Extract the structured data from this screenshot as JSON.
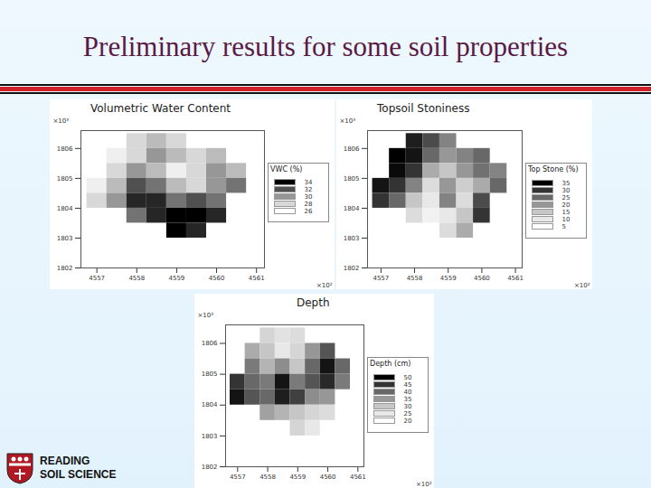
{
  "page": {
    "title": "Preliminary results for some soil properties",
    "logo": [
      "READING",
      "SOIL SCIENCE"
    ]
  },
  "chart_data": [
    {
      "type": "heatmap",
      "title": "Volumetric Water Content",
      "x_label": "×10²",
      "y_label": "×10³",
      "xlim": [
        4556.6,
        4561.2
      ],
      "ylim": [
        1802,
        1806.6
      ],
      "xticks": [
        4557,
        4558,
        4559,
        4560,
        4561
      ],
      "yticks": [
        1802,
        1803,
        1804,
        1805,
        1806
      ],
      "x": [
        4557.0,
        4557.5,
        4558.0,
        4558.5,
        4559.0,
        4559.5,
        4560.0,
        4560.5
      ],
      "y": [
        1806.25,
        1805.75,
        1805.25,
        1804.75,
        1804.25,
        1803.75,
        1803.25
      ],
      "values": [
        [
          null,
          null,
          28,
          29,
          28,
          null,
          null,
          null
        ],
        [
          null,
          27,
          28,
          30,
          29,
          28,
          29,
          null
        ],
        [
          null,
          28,
          30,
          29,
          27,
          28,
          30,
          29
        ],
        [
          27,
          29,
          32,
          31,
          29,
          28,
          30,
          31
        ],
        [
          28,
          30,
          33,
          33,
          31,
          32,
          31,
          null
        ],
        [
          null,
          null,
          31,
          33,
          34,
          34,
          33,
          null
        ],
        [
          null,
          null,
          null,
          null,
          34,
          33,
          null,
          null
        ]
      ],
      "colorbar": {
        "title": "VWC (%)",
        "range": [
          26,
          34
        ],
        "ticks": [
          34,
          32,
          30,
          28,
          26
        ]
      }
    },
    {
      "type": "heatmap",
      "title": "Topsoil Stoniness",
      "x_label": "×10²",
      "y_label": "×10³",
      "xlim": [
        4556.6,
        4561.2
      ],
      "ylim": [
        1802,
        1806.6
      ],
      "xticks": [
        4557,
        4558,
        4559,
        4560,
        4561
      ],
      "yticks": [
        1802,
        1803,
        1804,
        1805,
        1806
      ],
      "x": [
        4557.0,
        4557.5,
        4558.0,
        4558.5,
        4559.0,
        4559.5,
        4560.0,
        4560.5
      ],
      "y": [
        1806.25,
        1805.75,
        1805.25,
        1804.75,
        1804.25,
        1803.75,
        1803.25
      ],
      "values": [
        [
          null,
          null,
          32,
          28,
          22,
          null,
          null,
          null
        ],
        [
          null,
          35,
          33,
          25,
          20,
          22,
          25,
          null
        ],
        [
          null,
          34,
          30,
          18,
          15,
          20,
          24,
          22
        ],
        [
          33,
          30,
          22,
          12,
          20,
          14,
          18,
          25
        ],
        [
          30,
          25,
          15,
          10,
          22,
          12,
          28,
          null
        ],
        [
          null,
          null,
          12,
          8,
          10,
          15,
          30,
          null
        ],
        [
          null,
          null,
          null,
          null,
          12,
          18,
          null,
          null
        ]
      ],
      "colorbar": {
        "title": "Top Stone (%)",
        "range": [
          5,
          35
        ],
        "ticks": [
          35,
          30,
          25,
          20,
          15,
          10,
          5
        ]
      }
    },
    {
      "type": "heatmap",
      "title": "Depth",
      "x_label": "×10²",
      "y_label": "×10³",
      "xlim": [
        4556.6,
        4561.2
      ],
      "ylim": [
        1802,
        1806.6
      ],
      "xticks": [
        4557,
        4558,
        4559,
        4560,
        4561
      ],
      "yticks": [
        1802,
        1803,
        1804,
        1805,
        1806
      ],
      "x": [
        4557.0,
        4557.5,
        4558.0,
        4558.5,
        4559.0,
        4559.5,
        4560.0,
        4560.5
      ],
      "y": [
        1806.25,
        1805.75,
        1805.25,
        1804.75,
        1804.25,
        1803.75,
        1803.25
      ],
      "values": [
        [
          null,
          null,
          28,
          26,
          27,
          null,
          null,
          null
        ],
        [
          null,
          33,
          30,
          25,
          28,
          35,
          42,
          null
        ],
        [
          null,
          38,
          32,
          36,
          30,
          40,
          48,
          40
        ],
        [
          45,
          40,
          38,
          48,
          38,
          42,
          46,
          38
        ],
        [
          48,
          42,
          40,
          47,
          44,
          36,
          35,
          null
        ],
        [
          null,
          null,
          34,
          32,
          30,
          28,
          27,
          null
        ],
        [
          null,
          null,
          null,
          null,
          28,
          25,
          null,
          null
        ]
      ],
      "colorbar": {
        "title": "Depth (cm)",
        "range": [
          20,
          50
        ],
        "ticks": [
          50,
          45,
          40,
          35,
          30,
          25,
          20
        ]
      }
    }
  ]
}
